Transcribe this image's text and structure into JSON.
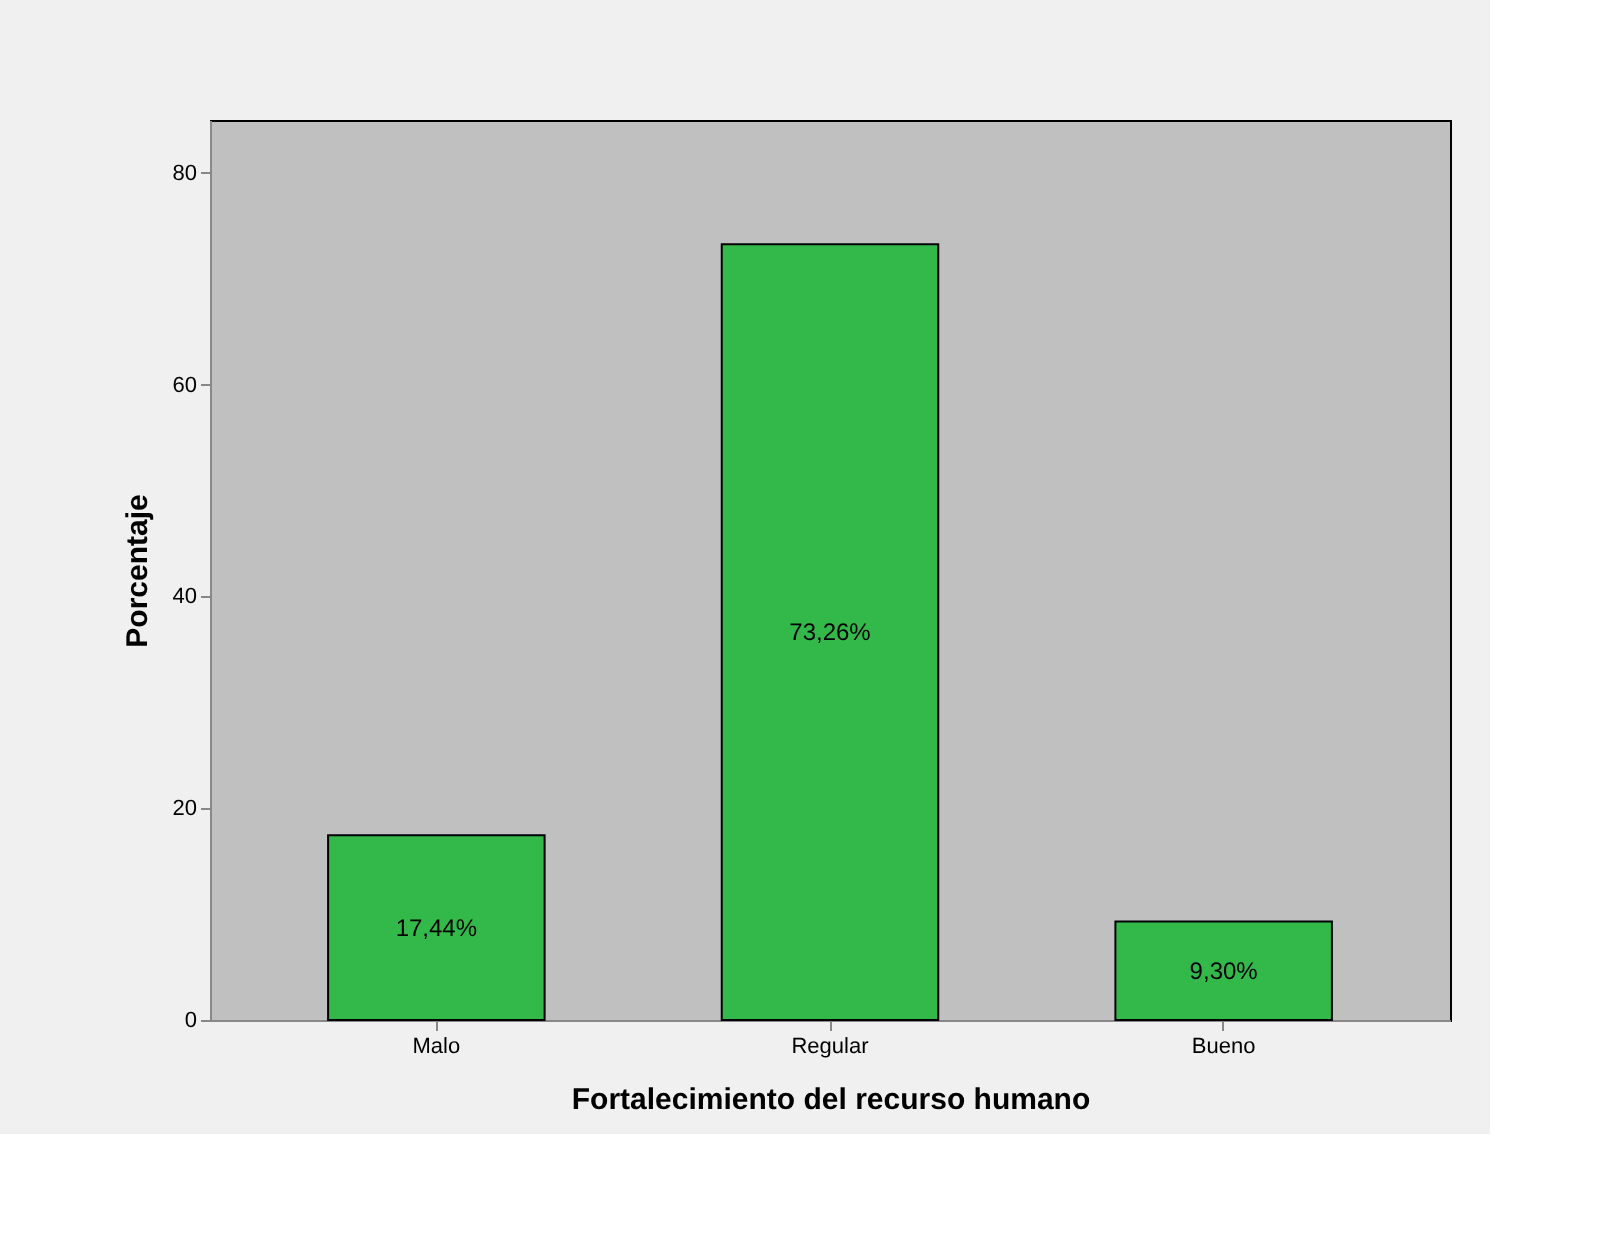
{
  "chart_data": {
    "type": "bar",
    "xlabel": "Fortalecimiento del recurso humano",
    "ylabel": "Porcentaje",
    "categories": [
      "Malo",
      "Regular",
      "Bueno"
    ],
    "values": [
      17.44,
      73.26,
      9.3
    ],
    "value_labels": [
      "17,44%",
      "73,26%",
      "9,30%"
    ],
    "color": "#33b84a",
    "ylim": [
      0,
      85
    ],
    "yticks": [
      0,
      20,
      40,
      60,
      80
    ],
    "grid": false
  }
}
